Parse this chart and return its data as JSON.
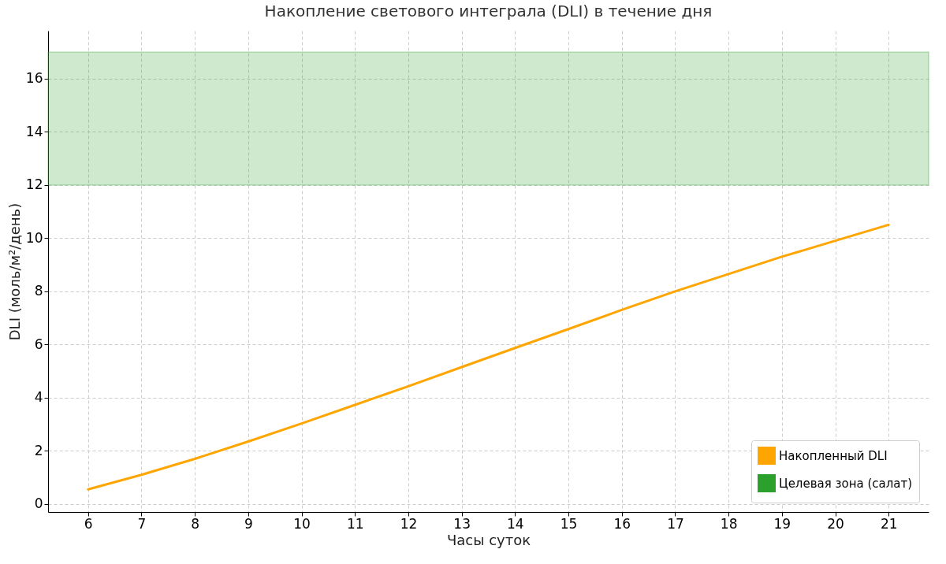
{
  "chart_data": {
    "type": "line",
    "title": "Накопление светового интеграла (DLI) в течение дня",
    "xlabel": "Часы суток",
    "ylabel": "DLI (моль/м²/день)",
    "x": [
      6,
      7,
      8,
      9,
      10,
      11,
      12,
      13,
      14,
      15,
      16,
      17,
      18,
      19,
      20,
      21
    ],
    "series": [
      {
        "name": "Накопленный DLI",
        "color": "#ffa500",
        "values": [
          0.55,
          1.1,
          1.7,
          2.35,
          3.03,
          3.73,
          4.43,
          5.15,
          5.87,
          6.58,
          7.3,
          8.0,
          8.65,
          9.3,
          9.9,
          10.5
        ]
      }
    ],
    "bands": [
      {
        "axis": "y",
        "from": 12,
        "to": 17,
        "label": "Целевая зона (салат)",
        "color": "#2ca02c"
      }
    ],
    "xlim": [
      5.25,
      21.75
    ],
    "ylim": [
      -0.3,
      17.8
    ],
    "xticks": [
      6,
      7,
      8,
      9,
      10,
      11,
      12,
      13,
      14,
      15,
      16,
      17,
      18,
      19,
      20,
      21
    ],
    "yticks": [
      0,
      2,
      4,
      6,
      8,
      10,
      12,
      14,
      16
    ],
    "grid": true,
    "legend": "bottom right",
    "marker": "none",
    "line_style": "solid"
  }
}
